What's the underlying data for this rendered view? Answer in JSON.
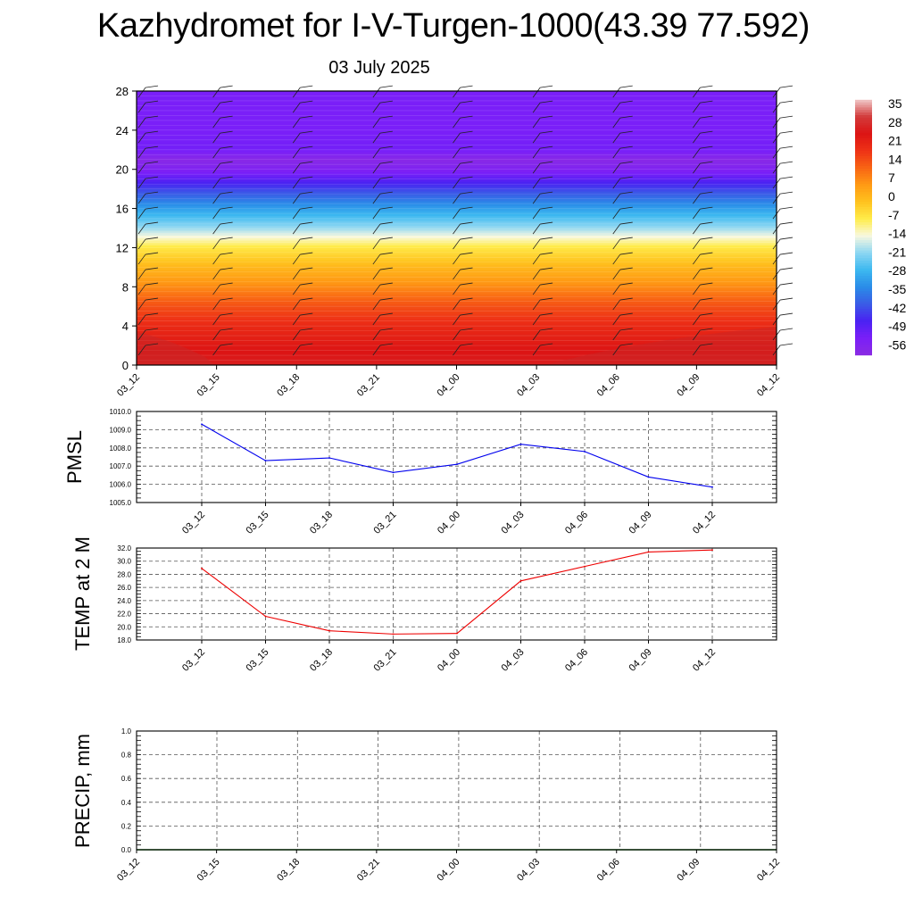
{
  "title": "Kazhydromet for I-V-Turgen-1000(43.39 77.592)",
  "date_label": "03 July 2025",
  "colors": {
    "pmsl_line": "#0000ee",
    "temp_line": "#ee0000",
    "precip_line": "#006400",
    "grid": "#555555"
  },
  "chart_data": [
    {
      "id": "contour",
      "type": "heatmap",
      "title": "",
      "description": "Time-height temperature cross-section with wind barbs",
      "x_tick_labels": [
        "03_12",
        "03_15",
        "03_18",
        "03_21",
        "04_00",
        "04_03",
        "04_06",
        "04_09",
        "04_12"
      ],
      "y_ticks": [
        0,
        4,
        8,
        12,
        16,
        20,
        24,
        28
      ],
      "ylim": [
        0,
        28
      ],
      "temperature_profile": [
        {
          "level": 0,
          "temp": 30
        },
        {
          "level": 2,
          "temp": 27
        },
        {
          "level": 4,
          "temp": 23
        },
        {
          "level": 6,
          "temp": 17
        },
        {
          "level": 8,
          "temp": 9
        },
        {
          "level": 10,
          "temp": 2
        },
        {
          "level": 12,
          "temp": -6
        },
        {
          "level": 13,
          "temp": -13
        },
        {
          "level": 14,
          "temp": -20
        },
        {
          "level": 16,
          "temp": -32
        },
        {
          "level": 18,
          "temp": -45
        },
        {
          "level": 20,
          "temp": -58
        },
        {
          "level": 21,
          "temp": -62
        },
        {
          "level": 22,
          "temp": -55
        },
        {
          "level": 24,
          "temp": -56
        },
        {
          "level": 28,
          "temp": -56
        }
      ],
      "colorbar": {
        "labels": [
          "35",
          "28",
          "21",
          "14",
          "7",
          "0",
          "-7",
          "-14",
          "-21",
          "-28",
          "-35",
          "-42",
          "-49",
          "-56"
        ],
        "min": -63,
        "max": 42,
        "stops": [
          {
            "t": -63,
            "color": "#8a2be2"
          },
          {
            "t": -56,
            "color": "#7a1ff8"
          },
          {
            "t": -49,
            "color": "#4a22f2"
          },
          {
            "t": -42,
            "color": "#3a5ce6"
          },
          {
            "t": -35,
            "color": "#2a8ce8"
          },
          {
            "t": -28,
            "color": "#3cb8f0"
          },
          {
            "t": -21,
            "color": "#8cd6f2"
          },
          {
            "t": -14,
            "color": "#f8f8e0"
          },
          {
            "t": -7,
            "color": "#ffec4a"
          },
          {
            "t": 0,
            "color": "#ffc21e"
          },
          {
            "t": 7,
            "color": "#ff9a14"
          },
          {
            "t": 14,
            "color": "#f86414"
          },
          {
            "t": 21,
            "color": "#ee3216"
          },
          {
            "t": 28,
            "color": "#dc1414"
          },
          {
            "t": 35,
            "color": "#d23a3a"
          },
          {
            "t": 42,
            "color": "#f0c8c8"
          }
        ]
      }
    },
    {
      "id": "pmsl",
      "type": "line",
      "ylabel": "PMSL",
      "ylim": [
        1005.0,
        1010.0
      ],
      "y_tick_labels": [
        "1005.0",
        "1006.0",
        "1007.0",
        "1008.0",
        "1009.0",
        "1010.0"
      ],
      "categories": [
        "03_12",
        "03_15",
        "03_18",
        "03_21",
        "04_00",
        "04_03",
        "04_06",
        "04_09",
        "04_12"
      ],
      "values": [
        1009.3,
        1007.3,
        1007.45,
        1006.65,
        1007.1,
        1008.2,
        1007.8,
        1006.4,
        1005.85
      ]
    },
    {
      "id": "temp2m",
      "type": "line",
      "ylabel": "TEMP at 2 M",
      "ylim": [
        18.0,
        32.0
      ],
      "y_tick_labels": [
        "18.0",
        "20.0",
        "22.0",
        "24.0",
        "26.0",
        "28.0",
        "30.0",
        "32.0"
      ],
      "categories": [
        "03_12",
        "03_15",
        "03_18",
        "03_21",
        "04_00",
        "04_03",
        "04_06",
        "04_09",
        "04_12"
      ],
      "values": [
        28.9,
        21.6,
        19.4,
        18.9,
        19.0,
        27.0,
        29.2,
        31.4,
        31.7
      ]
    },
    {
      "id": "precip",
      "type": "line",
      "ylabel": "PRECIP, mm",
      "ylim": [
        0.0,
        1.0
      ],
      "y_tick_labels": [
        "0.0",
        "0.2",
        "0.4",
        "0.6",
        "0.8",
        "1.0"
      ],
      "x_tick_labels": [
        "03_12",
        "03_15",
        "03_18",
        "03_21",
        "04_00",
        "04_03",
        "04_06",
        "04_09",
        "04_12"
      ],
      "values": [
        0,
        0,
        0,
        0,
        0,
        0,
        0,
        0,
        0
      ]
    }
  ]
}
